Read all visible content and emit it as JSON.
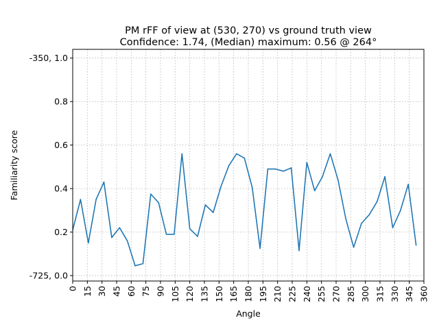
{
  "chart_data": {
    "type": "line",
    "title_line1": "PM rFF of view at (530, 270) vs ground truth view",
    "title_line2": "Confidence: 1.74, (Median) maximum: 0.56 @ 264°",
    "xlabel": "Angle",
    "ylabel": "Familiarity score",
    "xlim": [
      0,
      360
    ],
    "ylim": [
      -0.025,
      1.04
    ],
    "grid": true,
    "x_ticks": [
      0,
      15,
      30,
      45,
      60,
      75,
      90,
      105,
      120,
      135,
      150,
      165,
      180,
      195,
      210,
      225,
      240,
      255,
      270,
      285,
      300,
      315,
      330,
      345,
      360
    ],
    "y_ticks": [
      {
        "value": 0.0,
        "label": "-725, 0.0"
      },
      {
        "value": 0.2,
        "label": "0.2"
      },
      {
        "value": 0.4,
        "label": "0.4"
      },
      {
        "value": 0.6,
        "label": "0.6"
      },
      {
        "value": 0.8,
        "label": "0.8"
      },
      {
        "value": 1.0,
        "label": "-350, 1.0"
      }
    ],
    "series": [
      {
        "color": "#1f77b4",
        "x": [
          0,
          8,
          16,
          24,
          32,
          40,
          48,
          56,
          64,
          72,
          80,
          88,
          96,
          104,
          112,
          120,
          128,
          136,
          144,
          152,
          160,
          168,
          176,
          184,
          192,
          200,
          208,
          216,
          224,
          232,
          240,
          248,
          256,
          264,
          272,
          280,
          288,
          296,
          304,
          312,
          320,
          328,
          336,
          344,
          352
        ],
        "y": [
          0.21,
          0.35,
          0.15,
          0.35,
          0.43,
          0.175,
          0.22,
          0.16,
          0.045,
          0.055,
          0.375,
          0.335,
          0.19,
          0.19,
          0.56,
          0.215,
          0.18,
          0.325,
          0.29,
          0.41,
          0.505,
          0.56,
          0.54,
          0.405,
          0.125,
          0.49,
          0.49,
          0.48,
          0.495,
          0.115,
          0.52,
          0.39,
          0.455,
          0.56,
          0.44,
          0.26,
          0.13,
          0.24,
          0.28,
          0.34,
          0.455,
          0.22,
          0.3,
          0.42,
          0.14
        ]
      }
    ]
  }
}
